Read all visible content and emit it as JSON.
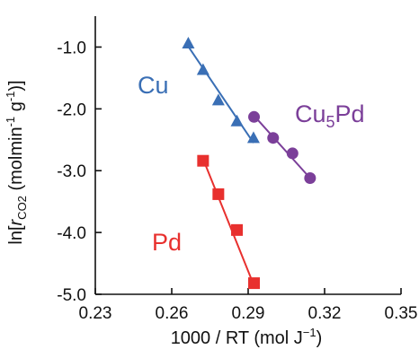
{
  "chart_data": {
    "type": "scatter",
    "title": "",
    "xlabel_parts": {
      "main": "1000 / RT (mol J",
      "sup": "−1",
      "close": ")"
    },
    "ylabel_parts": {
      "pre": "ln[",
      "r": "r",
      "sub": "CO2",
      "mid": " (molmin",
      "sup1": "-1",
      "mid2": " g",
      "sup2": "-1",
      "post": ")]"
    },
    "xlim": [
      0.23,
      0.35
    ],
    "ylim": [
      -5.0,
      -0.5
    ],
    "x_ticks": [
      "0.23",
      "0.26",
      "0.29",
      "0.32",
      "0.35"
    ],
    "x_tick_values": [
      0.23,
      0.26,
      0.29,
      0.32,
      0.35
    ],
    "y_ticks": [
      "-1.0",
      "-2.0",
      "-3.0",
      "-4.0",
      "-5.0"
    ],
    "y_tick_values": [
      -1.0,
      -2.0,
      -3.0,
      -4.0,
      -5.0
    ],
    "grid": false,
    "legend": "none",
    "series": [
      {
        "name": "Cu",
        "label_main": "Cu",
        "label_sub": "",
        "label_tail": "",
        "marker": "triangle",
        "color": "#3a6fb5",
        "points": [
          {
            "x": 0.2665,
            "y": -0.95
          },
          {
            "x": 0.2723,
            "y": -1.38
          },
          {
            "x": 0.2783,
            "y": -1.87
          },
          {
            "x": 0.2856,
            "y": -2.21
          },
          {
            "x": 0.2921,
            "y": -2.48
          }
        ],
        "fit": {
          "x": [
            0.2665,
            0.2921
          ],
          "y": [
            -0.99,
            -2.55
          ]
        }
      },
      {
        "name": "Cu5Pd",
        "label_main": "Cu",
        "label_sub": "5",
        "label_tail": "Pd",
        "marker": "circle",
        "color": "#7b3f99",
        "points": [
          {
            "x": 0.2923,
            "y": -2.13
          },
          {
            "x": 0.2998,
            "y": -2.47
          },
          {
            "x": 0.3074,
            "y": -2.72
          },
          {
            "x": 0.3143,
            "y": -3.12
          }
        ],
        "fit": {
          "x": [
            0.2923,
            0.3143
          ],
          "y": [
            -2.11,
            -3.12
          ]
        }
      },
      {
        "name": "Pd",
        "label_main": "Pd",
        "label_sub": "",
        "label_tail": "",
        "marker": "square",
        "color": "#e8302e",
        "points": [
          {
            "x": 0.2723,
            "y": -2.84
          },
          {
            "x": 0.2783,
            "y": -3.38
          },
          {
            "x": 0.2856,
            "y": -3.96
          },
          {
            "x": 0.2923,
            "y": -4.82
          }
        ],
        "fit": {
          "x": [
            0.2723,
            0.2923
          ],
          "y": [
            -2.81,
            -4.86
          ]
        }
      }
    ]
  }
}
